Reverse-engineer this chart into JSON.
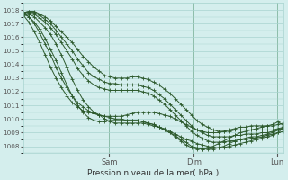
{
  "xlabel": "Pression niveau de la mer( hPa )",
  "bg_color": "#d4eeed",
  "grid_color": "#a8d4d0",
  "line_color": "#2d5a2d",
  "marker_color": "#2d5a2d",
  "vline_color": "#3a7a3a",
  "ylim": [
    1007.5,
    1018.5
  ],
  "yticks": [
    1008,
    1009,
    1010,
    1011,
    1012,
    1013,
    1014,
    1015,
    1016,
    1017,
    1018
  ],
  "day_labels": [
    "Sam",
    "Dim",
    "Lun"
  ],
  "day_positions": [
    0.33,
    0.655,
    0.975
  ],
  "total_points": 49,
  "lines": [
    [
      1017.8,
      1017.9,
      1017.9,
      1017.7,
      1017.5,
      1017.2,
      1016.8,
      1016.4,
      1016.0,
      1015.6,
      1015.1,
      1014.6,
      1014.2,
      1013.8,
      1013.5,
      1013.2,
      1013.1,
      1013.0,
      1013.0,
      1013.0,
      1013.1,
      1013.1,
      1013.0,
      1012.9,
      1012.7,
      1012.5,
      1012.2,
      1011.9,
      1011.5,
      1011.1,
      1010.7,
      1010.3,
      1009.9,
      1009.6,
      1009.4,
      1009.2,
      1009.1,
      1009.1,
      1009.1,
      1009.2,
      1009.2,
      1009.2,
      1009.2,
      1009.2,
      1009.2,
      1009.2,
      1009.2,
      1009.3,
      1009.4
    ],
    [
      1017.8,
      1017.9,
      1017.8,
      1017.6,
      1017.3,
      1017.0,
      1016.5,
      1016.0,
      1015.5,
      1015.0,
      1014.4,
      1013.9,
      1013.4,
      1013.1,
      1012.9,
      1012.7,
      1012.6,
      1012.6,
      1012.5,
      1012.5,
      1012.5,
      1012.5,
      1012.4,
      1012.3,
      1012.1,
      1011.8,
      1011.5,
      1011.1,
      1010.7,
      1010.3,
      1009.9,
      1009.5,
      1009.2,
      1009.0,
      1008.8,
      1008.7,
      1008.7,
      1008.7,
      1008.7,
      1008.8,
      1008.8,
      1008.9,
      1008.9,
      1008.9,
      1009.0,
      1009.0,
      1009.1,
      1009.2,
      1009.3
    ],
    [
      1017.8,
      1017.8,
      1017.7,
      1017.4,
      1017.1,
      1016.7,
      1016.2,
      1015.6,
      1015.0,
      1014.4,
      1013.7,
      1013.2,
      1012.8,
      1012.5,
      1012.3,
      1012.2,
      1012.1,
      1012.1,
      1012.1,
      1012.1,
      1012.1,
      1012.1,
      1012.0,
      1011.9,
      1011.7,
      1011.4,
      1011.1,
      1010.7,
      1010.3,
      1009.9,
      1009.5,
      1009.1,
      1008.8,
      1008.6,
      1008.4,
      1008.3,
      1008.3,
      1008.3,
      1008.4,
      1008.4,
      1008.5,
      1008.5,
      1008.6,
      1008.6,
      1008.7,
      1008.8,
      1008.9,
      1009.0,
      1009.1
    ],
    [
      1017.7,
      1017.7,
      1017.5,
      1017.1,
      1016.7,
      1016.2,
      1015.5,
      1014.7,
      1013.8,
      1012.9,
      1012.1,
      1011.4,
      1010.9,
      1010.5,
      1010.3,
      1010.2,
      1010.2,
      1010.2,
      1010.2,
      1010.3,
      1010.4,
      1010.5,
      1010.5,
      1010.5,
      1010.5,
      1010.4,
      1010.3,
      1010.2,
      1010.0,
      1009.8,
      1009.6,
      1009.4,
      1009.2,
      1009.1,
      1009.0,
      1009.0,
      1009.0,
      1009.1,
      1009.2,
      1009.3,
      1009.4,
      1009.4,
      1009.5,
      1009.5,
      1009.5,
      1009.5,
      1009.5,
      1009.6,
      1009.7
    ],
    [
      1017.7,
      1017.5,
      1017.1,
      1016.6,
      1015.9,
      1015.1,
      1014.3,
      1013.4,
      1012.5,
      1011.7,
      1011.0,
      1010.5,
      1010.1,
      1009.9,
      1009.8,
      1009.8,
      1009.9,
      1009.9,
      1009.9,
      1009.9,
      1009.9,
      1009.9,
      1009.8,
      1009.7,
      1009.6,
      1009.4,
      1009.3,
      1009.1,
      1008.9,
      1008.7,
      1008.5,
      1008.4,
      1008.2,
      1008.1,
      1008.0,
      1007.9,
      1007.9,
      1007.9,
      1008.0,
      1008.1,
      1008.2,
      1008.3,
      1008.4,
      1008.5,
      1008.6,
      1008.7,
      1008.8,
      1009.0,
      1009.4
    ],
    [
      1017.8,
      1017.5,
      1017.0,
      1016.3,
      1015.5,
      1014.7,
      1013.8,
      1013.0,
      1012.3,
      1011.7,
      1011.2,
      1010.9,
      1010.6,
      1010.4,
      1010.3,
      1010.0,
      1009.8,
      1009.7,
      1009.7,
      1009.7,
      1009.7,
      1009.7,
      1009.7,
      1009.6,
      1009.5,
      1009.4,
      1009.2,
      1009.0,
      1008.8,
      1008.5,
      1008.3,
      1008.0,
      1007.9,
      1007.8,
      1007.8,
      1007.8,
      1007.9,
      1008.0,
      1008.2,
      1008.4,
      1008.5,
      1008.6,
      1008.7,
      1008.7,
      1008.8,
      1008.9,
      1009.0,
      1009.2,
      1009.4
    ],
    [
      1017.6,
      1017.1,
      1016.4,
      1015.6,
      1014.7,
      1013.8,
      1013.0,
      1012.3,
      1011.7,
      1011.2,
      1010.9,
      1010.6,
      1010.5,
      1010.4,
      1010.3,
      1010.2,
      1010.1,
      1010.0,
      1010.0,
      1009.9,
      1009.9,
      1009.9,
      1009.8,
      1009.7,
      1009.6,
      1009.4,
      1009.2,
      1009.0,
      1008.7,
      1008.4,
      1008.1,
      1007.9,
      1007.8,
      1007.8,
      1007.9,
      1008.0,
      1008.2,
      1008.4,
      1008.6,
      1008.8,
      1009.0,
      1009.1,
      1009.2,
      1009.3,
      1009.4,
      1009.5,
      1009.6,
      1009.8,
      1009.5
    ]
  ]
}
